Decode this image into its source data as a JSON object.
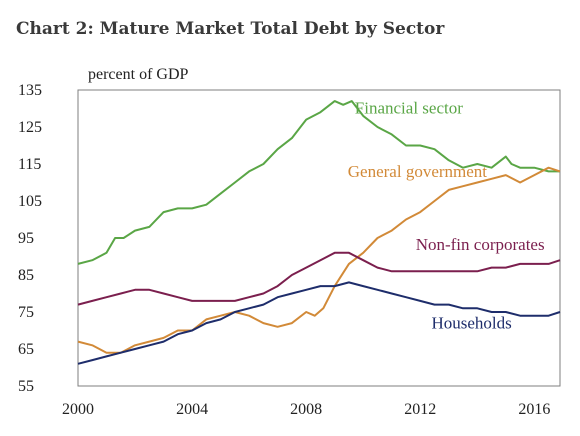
{
  "chart_data": {
    "type": "line",
    "title": "Chart 2: Mature Market Total Debt by Sector",
    "ylabel": "percent of GDP",
    "xlabel": "",
    "xlim": [
      2000,
      2016.9
    ],
    "ylim": [
      55,
      135
    ],
    "yticks": [
      55,
      65,
      75,
      85,
      95,
      105,
      115,
      125,
      135
    ],
    "xticks": [
      2000,
      2004,
      2008,
      2012,
      2016
    ],
    "grid": false,
    "series": [
      {
        "name": "Financial sector",
        "color": "#5aa646",
        "label_anchor": [
          2011.6,
          128.6
        ],
        "x": [
          2000,
          2000.5,
          2001,
          2001.3,
          2001.6,
          2002,
          2002.5,
          2003,
          2003.5,
          2004,
          2004.5,
          2005,
          2005.5,
          2006,
          2006.5,
          2007,
          2007.5,
          2008,
          2008.5,
          2009,
          2009.3,
          2009.6,
          2010,
          2010.5,
          2011,
          2011.5,
          2012,
          2012.5,
          2013,
          2013.5,
          2014,
          2014.5,
          2015,
          2015.2,
          2015.5,
          2016,
          2016.5,
          2016.9
        ],
        "values": [
          88,
          89,
          91,
          95,
          95,
          97,
          98,
          102,
          103,
          103,
          104,
          107,
          110,
          113,
          115,
          119,
          122,
          127,
          129,
          132,
          131,
          132,
          128,
          125,
          123,
          120,
          120,
          119,
          116,
          114,
          115,
          114,
          117,
          115,
          114,
          114,
          113,
          113
        ]
      },
      {
        "name": "General government",
        "color": "#d28a38",
        "label_anchor": [
          2011.9,
          111.5
        ],
        "x": [
          2000,
          2000.5,
          2001,
          2001.5,
          2002,
          2002.5,
          2003,
          2003.5,
          2004,
          2004.5,
          2005,
          2005.5,
          2006,
          2006.5,
          2007,
          2007.5,
          2008,
          2008.3,
          2008.6,
          2009,
          2009.5,
          2010,
          2010.5,
          2011,
          2011.5,
          2012,
          2012.5,
          2013,
          2013.5,
          2014,
          2014.5,
          2015,
          2015.5,
          2016,
          2016.5,
          2016.9
        ],
        "values": [
          67,
          66,
          64,
          64,
          66,
          67,
          68,
          70,
          70,
          73,
          74,
          75,
          74,
          72,
          71,
          72,
          75,
          74,
          76,
          82,
          88,
          91,
          95,
          97,
          100,
          102,
          105,
          108,
          109,
          110,
          111,
          112,
          110,
          112,
          114,
          113
        ]
      },
      {
        "name": "Non-fin corporates",
        "color": "#7b1f4e",
        "label_anchor": [
          2014.1,
          91.8
        ],
        "x": [
          2000,
          2000.5,
          2001,
          2001.5,
          2002,
          2002.5,
          2003,
          2003.5,
          2004,
          2004.5,
          2005,
          2005.5,
          2006,
          2006.5,
          2007,
          2007.5,
          2008,
          2008.5,
          2009,
          2009.5,
          2010,
          2010.5,
          2011,
          2011.5,
          2012,
          2012.5,
          2013,
          2013.5,
          2014,
          2014.5,
          2015,
          2015.5,
          2016,
          2016.5,
          2016.9
        ],
        "values": [
          77,
          78,
          79,
          80,
          81,
          81,
          80,
          79,
          78,
          78,
          78,
          78,
          79,
          80,
          82,
          85,
          87,
          89,
          91,
          91,
          89,
          87,
          86,
          86,
          86,
          86,
          86,
          86,
          86,
          87,
          87,
          88,
          88,
          88,
          89
        ]
      },
      {
        "name": "Households",
        "color": "#1e2d6b",
        "label_anchor": [
          2013.8,
          70.5
        ],
        "x": [
          2000,
          2000.5,
          2001,
          2001.5,
          2002,
          2002.5,
          2003,
          2003.5,
          2004,
          2004.5,
          2005,
          2005.5,
          2006,
          2006.5,
          2007,
          2007.5,
          2008,
          2008.5,
          2009,
          2009.5,
          2010,
          2010.5,
          2011,
          2011.5,
          2012,
          2012.5,
          2013,
          2013.5,
          2014,
          2014.5,
          2015,
          2015.5,
          2016,
          2016.5,
          2016.9
        ],
        "values": [
          61,
          62,
          63,
          64,
          65,
          66,
          67,
          69,
          70,
          72,
          73,
          75,
          76,
          77,
          79,
          80,
          81,
          82,
          82,
          83,
          82,
          81,
          80,
          79,
          78,
          77,
          77,
          76,
          76,
          75,
          75,
          74,
          74,
          74,
          75
        ]
      }
    ]
  }
}
